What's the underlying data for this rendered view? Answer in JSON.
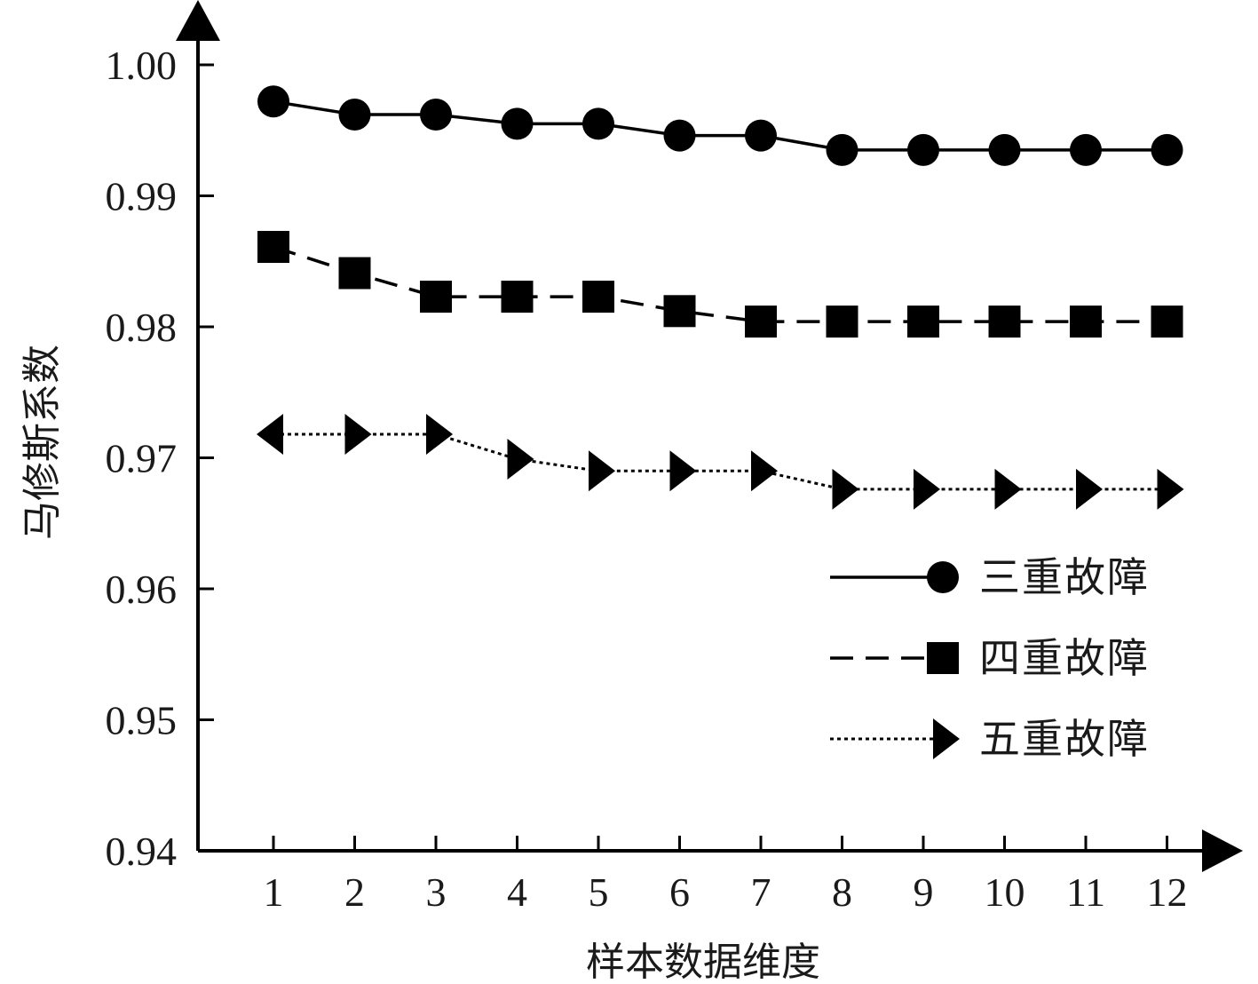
{
  "chart_data": {
    "type": "line",
    "xlabel": "样本数据维度",
    "ylabel": "马修斯系数",
    "x": [
      1,
      2,
      3,
      4,
      5,
      6,
      7,
      8,
      9,
      10,
      11,
      12
    ],
    "x_tick_labels": [
      "1",
      "2",
      "3",
      "4",
      "5",
      "6",
      "7",
      "8",
      "9",
      "10",
      "11",
      "12"
    ],
    "y_tick_labels": [
      "1.00",
      "0.99",
      "0.98",
      "0.97",
      "0.96",
      "0.95",
      "0.94"
    ],
    "y_ticks": [
      1.0,
      0.99,
      0.98,
      0.97,
      0.96,
      0.95,
      0.94
    ],
    "ylim": [
      0.94,
      1.0
    ],
    "grid": false,
    "legend_position": "right-middle",
    "series": [
      {
        "name": "三重故障",
        "line_style": "solid",
        "marker": "circle",
        "color": "#000000",
        "values": [
          0.9972,
          0.9962,
          0.9962,
          0.9955,
          0.9955,
          0.9946,
          0.9946,
          0.9935,
          0.9935,
          0.9935,
          0.9935,
          0.9935
        ]
      },
      {
        "name": "四重故障",
        "line_style": "dashed",
        "marker": "square",
        "color": "#000000",
        "values": [
          0.9861,
          0.9841,
          0.9823,
          0.9823,
          0.9823,
          0.9812,
          0.9804,
          0.9804,
          0.9804,
          0.9804,
          0.9804,
          0.9804
        ]
      },
      {
        "name": "五重故障",
        "line_style": "dotted",
        "marker": "triangle-right",
        "color": "#000000",
        "values": [
          0.9718,
          0.9718,
          0.9718,
          0.9699,
          0.969,
          0.969,
          0.969,
          0.9676,
          0.9676,
          0.9676,
          0.9676,
          0.9676
        ]
      }
    ]
  }
}
